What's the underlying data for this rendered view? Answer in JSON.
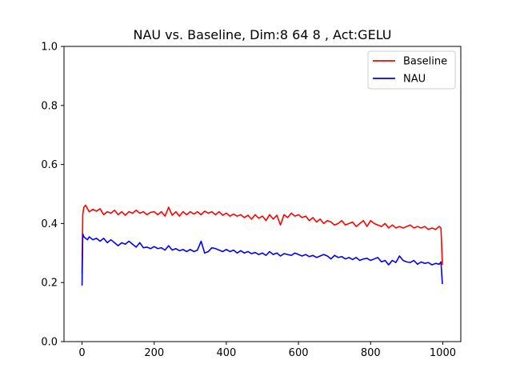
{
  "chart_data": {
    "type": "line",
    "title": "NAU vs. Baseline, Dim:8 64 8 , Act:GELU",
    "xlabel": "",
    "ylabel": "",
    "xlim": [
      -50,
      1050
    ],
    "ylim": [
      0.0,
      1.0
    ],
    "xticks": [
      0,
      200,
      400,
      600,
      800,
      1000
    ],
    "xtick_labels": [
      "0",
      "200",
      "400",
      "600",
      "800",
      "1000"
    ],
    "yticks": [
      0.0,
      0.2,
      0.4,
      0.6,
      0.8,
      1.0
    ],
    "ytick_labels": [
      "0.0",
      "0.2",
      "0.4",
      "0.6",
      "0.8",
      "1.0"
    ],
    "grid": false,
    "legend_position": "top-right",
    "series": [
      {
        "name": "Baseline",
        "color": "#ff0000",
        "x": [
          0,
          2,
          5,
          10,
          15,
          20,
          30,
          40,
          50,
          60,
          70,
          80,
          90,
          100,
          110,
          120,
          130,
          140,
          150,
          160,
          170,
          180,
          190,
          200,
          210,
          220,
          230,
          240,
          250,
          260,
          270,
          280,
          290,
          300,
          310,
          320,
          330,
          340,
          350,
          360,
          370,
          380,
          390,
          400,
          410,
          420,
          430,
          440,
          450,
          460,
          470,
          480,
          490,
          500,
          510,
          520,
          530,
          540,
          550,
          560,
          570,
          580,
          590,
          600,
          610,
          620,
          630,
          640,
          650,
          660,
          670,
          680,
          690,
          700,
          710,
          720,
          730,
          740,
          750,
          760,
          770,
          780,
          790,
          800,
          810,
          820,
          830,
          840,
          850,
          860,
          870,
          880,
          890,
          900,
          910,
          920,
          930,
          940,
          950,
          960,
          970,
          980,
          990,
          995,
          999
        ],
        "y": [
          0.23,
          0.43,
          0.455,
          0.462,
          0.45,
          0.44,
          0.448,
          0.442,
          0.45,
          0.43,
          0.44,
          0.435,
          0.445,
          0.43,
          0.44,
          0.428,
          0.44,
          0.435,
          0.445,
          0.435,
          0.44,
          0.43,
          0.438,
          0.44,
          0.43,
          0.44,
          0.425,
          0.455,
          0.428,
          0.44,
          0.425,
          0.44,
          0.43,
          0.44,
          0.432,
          0.44,
          0.43,
          0.442,
          0.435,
          0.44,
          0.43,
          0.44,
          0.428,
          0.435,
          0.425,
          0.432,
          0.425,
          0.43,
          0.42,
          0.428,
          0.415,
          0.43,
          0.418,
          0.425,
          0.41,
          0.43,
          0.415,
          0.428,
          0.395,
          0.43,
          0.42,
          0.435,
          0.425,
          0.43,
          0.42,
          0.425,
          0.41,
          0.42,
          0.405,
          0.415,
          0.4,
          0.41,
          0.405,
          0.395,
          0.4,
          0.41,
          0.395,
          0.4,
          0.405,
          0.39,
          0.4,
          0.41,
          0.39,
          0.41,
          0.4,
          0.395,
          0.39,
          0.4,
          0.385,
          0.395,
          0.385,
          0.39,
          0.385,
          0.39,
          0.395,
          0.385,
          0.39,
          0.385,
          0.39,
          0.38,
          0.385,
          0.38,
          0.39,
          0.385,
          0.26
        ]
      },
      {
        "name": "NAU",
        "color": "#0000ff",
        "x": [
          0,
          2,
          5,
          10,
          15,
          20,
          30,
          40,
          50,
          60,
          70,
          80,
          90,
          100,
          110,
          120,
          130,
          140,
          150,
          160,
          170,
          180,
          190,
          200,
          210,
          220,
          230,
          240,
          250,
          260,
          270,
          280,
          290,
          300,
          310,
          320,
          330,
          340,
          350,
          360,
          370,
          380,
          390,
          400,
          410,
          420,
          430,
          440,
          450,
          460,
          470,
          480,
          490,
          500,
          510,
          520,
          530,
          540,
          550,
          560,
          570,
          580,
          590,
          600,
          610,
          620,
          630,
          640,
          650,
          660,
          670,
          680,
          690,
          700,
          710,
          720,
          730,
          740,
          750,
          760,
          770,
          780,
          790,
          800,
          810,
          820,
          830,
          840,
          850,
          860,
          870,
          880,
          890,
          900,
          910,
          920,
          930,
          940,
          950,
          960,
          970,
          980,
          990,
          995,
          999
        ],
        "y": [
          0.19,
          0.365,
          0.355,
          0.35,
          0.345,
          0.355,
          0.345,
          0.35,
          0.34,
          0.35,
          0.335,
          0.345,
          0.335,
          0.325,
          0.335,
          0.33,
          0.34,
          0.33,
          0.32,
          0.335,
          0.318,
          0.32,
          0.315,
          0.322,
          0.315,
          0.318,
          0.31,
          0.325,
          0.31,
          0.315,
          0.308,
          0.312,
          0.305,
          0.312,
          0.305,
          0.31,
          0.34,
          0.3,
          0.305,
          0.318,
          0.315,
          0.31,
          0.305,
          0.312,
          0.305,
          0.31,
          0.3,
          0.308,
          0.3,
          0.305,
          0.298,
          0.302,
          0.295,
          0.3,
          0.292,
          0.305,
          0.295,
          0.3,
          0.29,
          0.298,
          0.295,
          0.292,
          0.3,
          0.295,
          0.29,
          0.295,
          0.288,
          0.292,
          0.285,
          0.29,
          0.295,
          0.29,
          0.28,
          0.292,
          0.285,
          0.288,
          0.28,
          0.285,
          0.278,
          0.285,
          0.275,
          0.28,
          0.282,
          0.275,
          0.28,
          0.285,
          0.27,
          0.275,
          0.26,
          0.275,
          0.268,
          0.29,
          0.275,
          0.27,
          0.268,
          0.275,
          0.262,
          0.27,
          0.265,
          0.268,
          0.26,
          0.265,
          0.262,
          0.27,
          0.195
        ]
      }
    ]
  }
}
